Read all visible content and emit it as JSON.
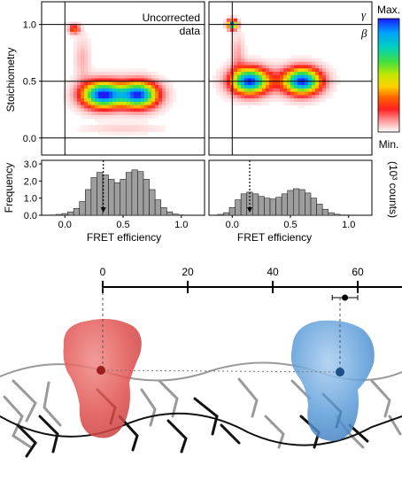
{
  "colors": {
    "hist_bar": "#9e9e9e",
    "dye_red": "#e0504f",
    "dye_blue": "#5b9bd8",
    "colorbar": [
      "#1a1aff",
      "#00a0ff",
      "#00d0c0",
      "#40e040",
      "#c8e800",
      "#ffd000",
      "#ff6000",
      "#ff2020",
      "#ff8080",
      "#ffd0d0",
      "#ffffff"
    ]
  },
  "chart_data": [
    {
      "type": "heatmap",
      "panel": "left",
      "ylabel": "Stoichiometry",
      "annotation_line1": "Uncorrected",
      "annotation_line2": "data",
      "xlim": [
        -0.2,
        1.2
      ],
      "ylim": [
        -0.15,
        1.2
      ],
      "y_ticks": [
        "0.0",
        "0.5",
        "1.0"
      ],
      "reference_lines": {
        "x": [
          0.0
        ],
        "y": [
          0.0,
          0.5,
          1.0
        ]
      },
      "populations": [
        {
          "x": 0.32,
          "y": 0.38,
          "sx": 0.13,
          "sy": 0.085,
          "amp": 1.0
        },
        {
          "x": 0.64,
          "y": 0.38,
          "sx": 0.12,
          "sy": 0.085,
          "amp": 0.95
        },
        {
          "x": 0.08,
          "y": 0.96,
          "sx": 0.035,
          "sy": 0.03,
          "amp": 0.4
        },
        {
          "x": 0.15,
          "y": 0.7,
          "sx": 0.05,
          "sy": 0.14,
          "amp": 0.14
        },
        {
          "x": 0.5,
          "y": 0.08,
          "sx": 0.25,
          "sy": 0.03,
          "amp": 0.1
        }
      ]
    },
    {
      "type": "heatmap",
      "panel": "right",
      "xlim": [
        -0.2,
        1.2
      ],
      "ylim": [
        -0.15,
        1.2
      ],
      "label_gamma": "γ",
      "label_beta": "β",
      "reference_lines": {
        "x": [
          0.0
        ],
        "y": [
          0.0,
          0.5,
          1.0
        ]
      },
      "populations": [
        {
          "x": 0.15,
          "y": 0.5,
          "sx": 0.12,
          "sy": 0.085,
          "amp": 1.0
        },
        {
          "x": 0.6,
          "y": 0.5,
          "sx": 0.12,
          "sy": 0.085,
          "amp": 1.0
        },
        {
          "x": 0.0,
          "y": 1.0,
          "sx": 0.03,
          "sy": 0.03,
          "amp": 1.0
        },
        {
          "x": 0.05,
          "y": 0.75,
          "sx": 0.04,
          "sy": 0.12,
          "amp": 0.15
        }
      ]
    },
    {
      "type": "bar",
      "panel": "left",
      "xlabel": "FRET efficiency",
      "ylabel": "Frequency",
      "x_ticks": [
        "0.0",
        "0.5",
        "1.0"
      ],
      "y_ticks": [
        "0.0",
        "1.0",
        "2.0",
        "3.0"
      ],
      "ylim": [
        0,
        3.0
      ],
      "marker_x": 0.33,
      "bin_centers": [
        -0.15,
        -0.1,
        -0.05,
        0.0,
        0.05,
        0.1,
        0.15,
        0.2,
        0.25,
        0.3,
        0.35,
        0.4,
        0.45,
        0.5,
        0.55,
        0.6,
        0.65,
        0.7,
        0.75,
        0.8,
        0.85,
        0.9,
        0.95,
        1.0
      ],
      "values": [
        0.0,
        0.02,
        0.05,
        0.1,
        0.2,
        0.4,
        0.8,
        1.5,
        2.2,
        2.5,
        2.35,
        2.1,
        1.9,
        2.1,
        2.5,
        2.65,
        2.55,
        2.1,
        1.5,
        0.9,
        0.45,
        0.2,
        0.07,
        0.02
      ]
    },
    {
      "type": "bar",
      "panel": "right",
      "xlabel": "FRET efficiency",
      "ylabel": "(10³ counts)",
      "x_ticks": [
        "0.0",
        "0.5",
        "1.0"
      ],
      "ylim": [
        0,
        3.0
      ],
      "marker_x": 0.15,
      "bin_centers": [
        -0.1,
        -0.05,
        0.0,
        0.05,
        0.1,
        0.15,
        0.2,
        0.25,
        0.3,
        0.35,
        0.4,
        0.45,
        0.5,
        0.55,
        0.6,
        0.65,
        0.7,
        0.75,
        0.8,
        0.85,
        0.9,
        0.95
      ],
      "values": [
        0.05,
        0.15,
        0.45,
        0.9,
        1.25,
        1.35,
        1.25,
        1.1,
        1.0,
        0.95,
        1.05,
        1.25,
        1.45,
        1.55,
        1.5,
        1.3,
        1.0,
        0.65,
        0.35,
        0.15,
        0.06,
        0.02
      ]
    },
    {
      "type": "scatter",
      "panel": "distance-scale",
      "x_ticks": [
        "0",
        "20",
        "40",
        "60"
      ],
      "xlim": [
        0,
        70
      ],
      "points": [
        {
          "x": 57,
          "err": [
            3,
            3
          ]
        }
      ]
    }
  ],
  "colorbar": {
    "max_label": "Max.",
    "min_label": "Min."
  }
}
